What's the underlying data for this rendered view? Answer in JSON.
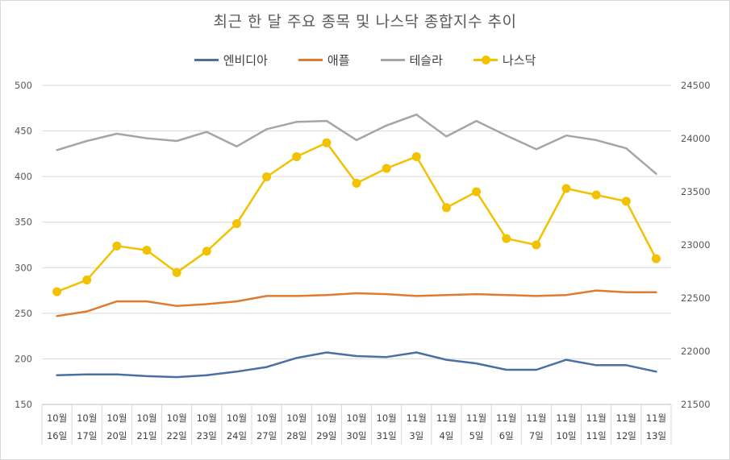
{
  "chart_data": {
    "type": "line",
    "title": "최근 한 달 주요 종목 및 나스닥 종합지수 추이",
    "categories": [
      [
        "10월",
        "16일"
      ],
      [
        "10월",
        "17일"
      ],
      [
        "10월",
        "20일"
      ],
      [
        "10월",
        "21일"
      ],
      [
        "10월",
        "22일"
      ],
      [
        "10월",
        "23일"
      ],
      [
        "10월",
        "24일"
      ],
      [
        "10월",
        "27일"
      ],
      [
        "10월",
        "28일"
      ],
      [
        "10월",
        "29일"
      ],
      [
        "10월",
        "30일"
      ],
      [
        "10월",
        "31일"
      ],
      [
        "11월",
        "3일"
      ],
      [
        "11월",
        "4일"
      ],
      [
        "11월",
        "5일"
      ],
      [
        "11월",
        "6일"
      ],
      [
        "11월",
        "7일"
      ],
      [
        "11월",
        "10일"
      ],
      [
        "11월",
        "11일"
      ],
      [
        "11월",
        "12일"
      ],
      [
        "11월",
        "13일"
      ]
    ],
    "y_left": {
      "min": 150,
      "max": 500,
      "step": 50,
      "ticks": [
        "150",
        "200",
        "250",
        "300",
        "350",
        "400",
        "450",
        "500"
      ]
    },
    "y_right": {
      "min": 21500,
      "max": 24500,
      "step": 500,
      "ticks": [
        "21500",
        "22000",
        "22500",
        "23000",
        "23500",
        "24000",
        "24500"
      ]
    },
    "grid": true,
    "legend_position": "top",
    "series": [
      {
        "name": "엔비디아",
        "axis": "left",
        "color": "#4a6fa5",
        "markers": false,
        "values": [
          182,
          183,
          183,
          181,
          180,
          182,
          186,
          191,
          201,
          207,
          203,
          202,
          207,
          199,
          195,
          188,
          188,
          199,
          193,
          193,
          186
        ]
      },
      {
        "name": "애플",
        "axis": "left",
        "color": "#e07a2e",
        "markers": false,
        "values": [
          247,
          252,
          263,
          263,
          258,
          260,
          263,
          269,
          269,
          270,
          272,
          271,
          269,
          270,
          271,
          270,
          269,
          270,
          275,
          273,
          273
        ]
      },
      {
        "name": "테슬라",
        "axis": "left",
        "color": "#a5a5a5",
        "markers": false,
        "values": [
          429,
          439,
          447,
          442,
          439,
          449,
          433,
          452,
          460,
          461,
          440,
          456,
          468,
          444,
          461,
          445,
          430,
          445,
          440,
          431,
          403
        ]
      },
      {
        "name": "나스닥",
        "axis": "right",
        "color": "#f2c100",
        "markers": true,
        "values": [
          22560,
          22670,
          22990,
          22950,
          22740,
          22940,
          23200,
          23640,
          23830,
          23960,
          23580,
          23720,
          23830,
          23350,
          23500,
          23060,
          23000,
          23530,
          23470,
          23410,
          22870
        ]
      }
    ]
  }
}
